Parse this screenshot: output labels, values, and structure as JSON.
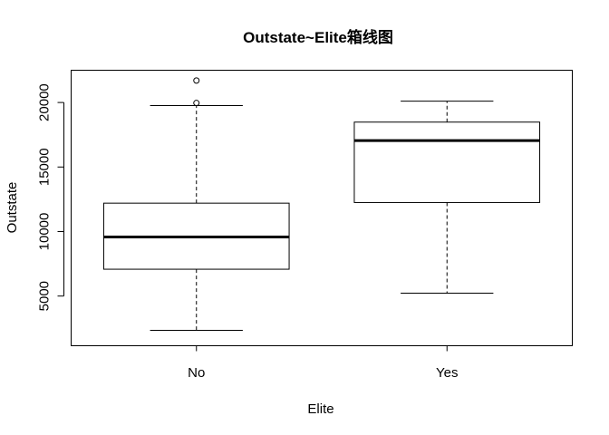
{
  "chart_data": {
    "type": "boxplot",
    "title": "Outstate~Elite箱线图",
    "xlabel": "Elite",
    "ylabel": "Outstate",
    "categories": [
      "No",
      "Yes"
    ],
    "boxes": [
      {
        "name": "No",
        "min": 2340,
        "q1": 7080,
        "median": 9580,
        "q3": 12200,
        "max": 19760,
        "outliers": [
          19960,
          21700
        ]
      },
      {
        "name": "Yes",
        "min": 5220,
        "q1": 12250,
        "median": 17050,
        "q3": 18480,
        "max": 20100,
        "outliers": []
      }
    ],
    "ylim": [
      1150,
      22500
    ],
    "yticks": [
      5000,
      10000,
      15000,
      20000
    ],
    "grid": false,
    "legend": "none"
  }
}
